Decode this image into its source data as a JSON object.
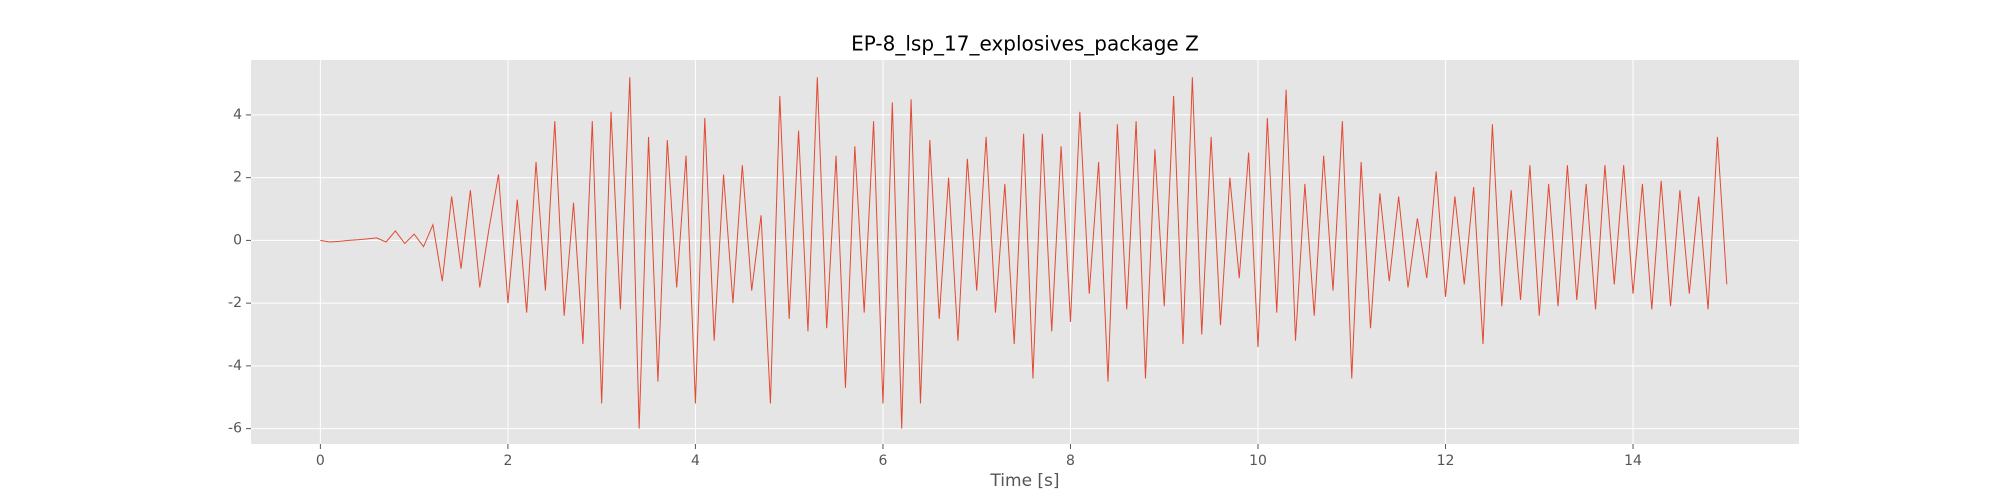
{
  "chart_data": {
    "type": "line",
    "title": "EP-8_lsp_17_explosives_package Z",
    "xlabel": "Time [s]",
    "x": [
      0,
      0.1,
      0.2,
      0.3,
      0.4,
      0.5,
      0.6,
      0.7,
      0.8,
      0.9,
      1,
      1.1,
      1.2,
      1.3,
      1.4,
      1.5,
      1.6,
      1.7,
      1.8,
      1.9,
      2,
      2.1,
      2.2,
      2.3,
      2.4,
      2.5,
      2.6,
      2.7,
      2.8,
      2.9,
      3,
      3.1,
      3.2,
      3.3,
      3.4,
      3.5,
      3.6,
      3.7,
      3.8,
      3.9,
      4,
      4.1,
      4.2,
      4.3,
      4.4,
      4.5,
      4.6,
      4.7,
      4.8,
      4.9,
      5,
      5.1,
      5.2,
      5.3,
      5.4,
      5.5,
      5.6,
      5.7,
      5.8,
      5.9,
      6,
      6.1,
      6.2,
      6.3,
      6.4,
      6.5,
      6.6,
      6.7,
      6.8,
      6.9,
      7,
      7.1,
      7.2,
      7.3,
      7.4,
      7.5,
      7.6,
      7.7,
      7.8,
      7.9,
      8,
      8.1,
      8.2,
      8.3,
      8.4,
      8.5,
      8.6,
      8.7,
      8.8,
      8.9,
      9,
      9.1,
      9.2,
      9.3,
      9.4,
      9.5,
      9.6,
      9.7,
      9.8,
      9.9,
      10,
      10.1,
      10.2,
      10.3,
      10.4,
      10.5,
      10.6,
      10.7,
      10.8,
      10.9,
      11,
      11.1,
      11.2,
      11.3,
      11.4,
      11.5,
      11.6,
      11.7,
      11.8,
      11.9,
      12,
      12.1,
      12.2,
      12.3,
      12.4,
      12.5,
      12.6,
      12.7,
      12.8,
      12.9,
      13,
      13.1,
      13.2,
      13.3,
      13.4,
      13.5,
      13.6,
      13.7,
      13.8,
      13.9,
      14,
      14.1,
      14.2,
      14.3,
      14.4,
      14.5,
      14.6,
      14.7,
      14.8,
      14.9,
      15
    ],
    "series": [
      {
        "color": "#e24a33",
        "values": [
          0,
          -0.05,
          -0.03,
          0,
          0.02,
          0.05,
          0.08,
          -0.05,
          0.3,
          -0.1,
          0.2,
          -0.2,
          0.5,
          -1.3,
          1.4,
          -0.9,
          1.6,
          -1.5,
          0.4,
          2.1,
          -2.0,
          1.3,
          -2.3,
          2.5,
          -1.6,
          3.8,
          -2.4,
          1.2,
          -3.3,
          3.8,
          -5.2,
          4.1,
          -2.2,
          5.2,
          -6.0,
          3.3,
          -4.5,
          3.2,
          -1.5,
          2.7,
          -5.2,
          3.9,
          -3.2,
          2.1,
          -2.0,
          2.4,
          -1.6,
          0.8,
          -5.2,
          4.6,
          -2.5,
          3.5,
          -2.9,
          5.2,
          -2.8,
          2.7,
          -4.7,
          3.0,
          -2.3,
          3.8,
          -5.2,
          4.4,
          -6.0,
          4.5,
          -5.2,
          3.2,
          -2.5,
          2.0,
          -3.2,
          2.6,
          -1.6,
          3.3,
          -2.3,
          1.8,
          -3.3,
          3.4,
          -4.4,
          3.4,
          -2.9,
          3.0,
          -2.6,
          4.1,
          -1.7,
          2.5,
          -4.5,
          3.7,
          -2.2,
          3.8,
          -4.4,
          2.9,
          -2.1,
          4.6,
          -3.3,
          5.2,
          -3.0,
          3.3,
          -2.7,
          2.0,
          -1.2,
          2.8,
          -3.4,
          3.9,
          -2.3,
          4.8,
          -3.2,
          1.8,
          -2.4,
          2.7,
          -1.6,
          3.8,
          -4.4,
          2.5,
          -2.8,
          1.5,
          -1.3,
          1.4,
          -1.5,
          0.7,
          -1.2,
          2.2,
          -1.8,
          1.4,
          -1.4,
          1.7,
          -3.3,
          3.7,
          -2.1,
          1.6,
          -1.9,
          2.4,
          -2.4,
          1.8,
          -2.1,
          2.4,
          -1.9,
          1.8,
          -2.2,
          2.4,
          -1.4,
          2.4,
          -1.7,
          1.8,
          -2.2,
          1.9,
          -2.1,
          1.6,
          -1.7,
          1.4,
          -2.2,
          3.3,
          -1.4
        ]
      }
    ],
    "xlim": [
      -0.74,
      15.77
    ],
    "xticks": [
      0,
      2,
      4,
      6,
      8,
      10,
      12,
      14
    ],
    "ylim": [
      -6.49,
      5.75
    ],
    "yticks": [
      -6,
      -4,
      -2,
      0,
      2,
      4
    ],
    "grid": true
  }
}
